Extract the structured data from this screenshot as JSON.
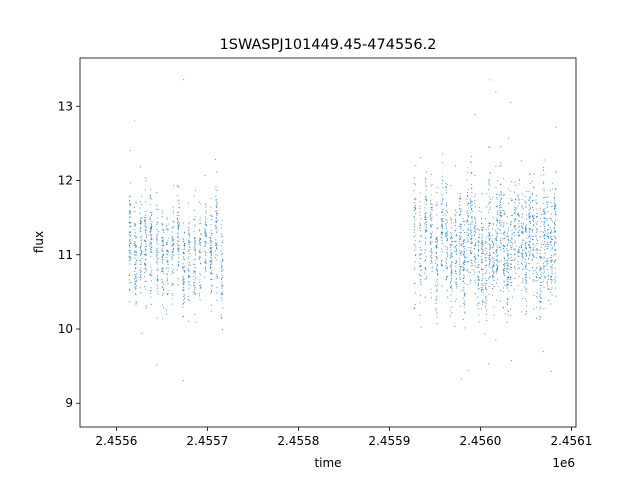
{
  "chart_data": {
    "type": "scatter",
    "title": "1SWASPJ101449.45-474556.2",
    "xlabel": "time",
    "ylabel": "flux",
    "x_offset_label": "1e6",
    "xlim": [
      2455560,
      2456105
    ],
    "ylim": [
      8.68,
      13.65
    ],
    "x_ticks": [
      2455600,
      2455700,
      2455800,
      2455900,
      2456000,
      2456100
    ],
    "x_tick_labels": [
      "2.4556",
      "2.4557",
      "2.4558",
      "2.4559",
      "2.4560",
      "2.4561"
    ],
    "y_ticks": [
      9,
      10,
      11,
      12,
      13
    ],
    "y_tick_labels": [
      "9",
      "10",
      "11",
      "12",
      "13"
    ],
    "grid": false,
    "legend": "none",
    "point_color": "#1f77b4",
    "series": [
      {
        "x_range": [
          2455615,
          2455718
        ],
        "y_center": 11.1,
        "y_spread": 0.45,
        "observing_nights": [
          2455615,
          2455621,
          2455627,
          2455632,
          2455638,
          2455645,
          2455651,
          2455656,
          2455662,
          2455668,
          2455674,
          2455680,
          2455686,
          2455692,
          2455698,
          2455704,
          2455710,
          2455716
        ]
      },
      {
        "x_range": [
          2455925,
          2456085
        ],
        "y_center": 11.05,
        "y_spread": 0.5,
        "observing_nights": [
          2455928,
          2455934,
          2455940,
          2455946,
          2455952,
          2455958,
          2455963,
          2455968,
          2455973,
          2455978,
          2455982,
          2455986,
          2455990,
          2455994,
          2455998,
          2456002,
          2456006,
          2456010,
          2456014,
          2456018,
          2456022,
          2456026,
          2456030,
          2456034,
          2456038,
          2456042,
          2456046,
          2456050,
          2456054,
          2456058,
          2456062,
          2456066,
          2456070,
          2456074,
          2456078,
          2456082
        ]
      }
    ]
  }
}
